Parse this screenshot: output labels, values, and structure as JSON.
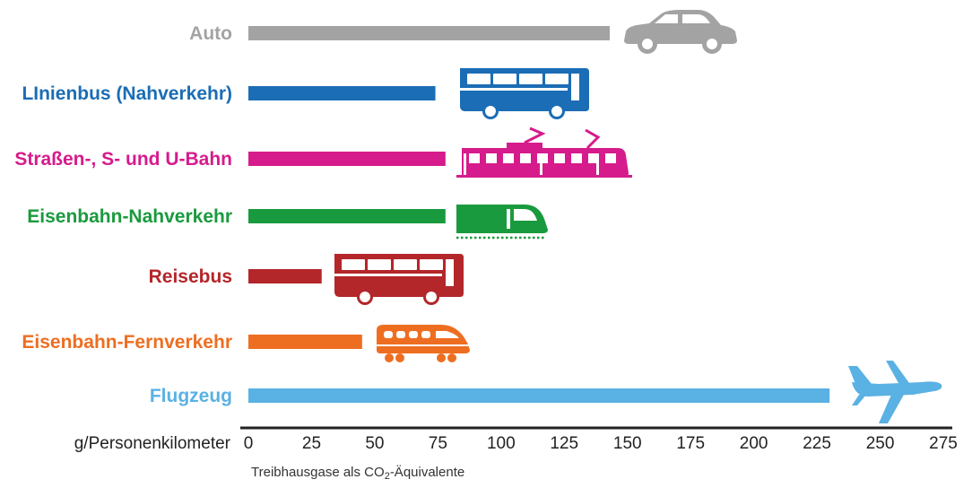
{
  "chart_data": {
    "type": "bar",
    "orientation": "horizontal",
    "categories": [
      "Auto",
      "LInienbus (Nahverkehr)",
      "Straßen-, S- und U-Bahn",
      "Eisenbahn-Nahverkehr",
      "Reisebus",
      "Eisenbahn-Fernverkehr",
      "Flugzeug"
    ],
    "values": [
      143,
      74,
      78,
      78,
      29,
      45,
      230
    ],
    "colors": [
      "#a3a3a3",
      "#1b6db5",
      "#d61b8c",
      "#1a9a3e",
      "#b3262a",
      "#ee6e21",
      "#5ab1e3"
    ],
    "icons": [
      "car-icon",
      "bus-icon",
      "tram-icon",
      "regional-train-icon",
      "coach-icon",
      "intercity-train-icon",
      "airplane-icon"
    ],
    "x_unit_label": "g/Personenkilometer",
    "x_ticks": [
      0,
      25,
      50,
      75,
      100,
      125,
      150,
      175,
      200,
      225,
      250,
      275
    ],
    "xlim": [
      0,
      275
    ],
    "xlabel": {
      "pre": "Treibhausgase als CO",
      "sub": "2",
      "post": "-Äquivalente"
    },
    "grid": false,
    "legend": "none"
  }
}
